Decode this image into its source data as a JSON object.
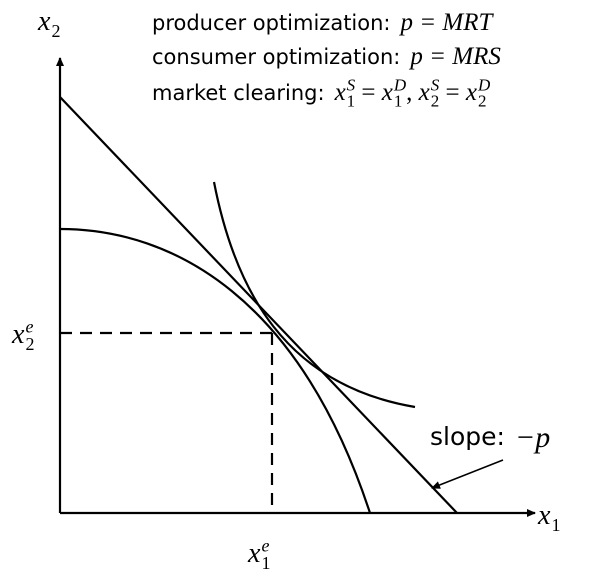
{
  "axes": {
    "y_label": {
      "t": "x",
      "sub": "2"
    },
    "x_label": {
      "t": "x",
      "sub": "1"
    }
  },
  "equilibrium": {
    "x2": {
      "t": "x",
      "sup": "e",
      "sub": "2"
    },
    "x1": {
      "t": "x",
      "sup": "e",
      "sub": "1"
    }
  },
  "conditions": [
    {
      "label": "producer optimization:",
      "math": "p = MRT"
    },
    {
      "label": "consumer optimization:",
      "math": "p = MRS"
    },
    {
      "label": "market clearing:",
      "math": [
        {
          "t": "x",
          "sup": "S",
          "sub": "1"
        },
        " = ",
        {
          "t": "x",
          "sup": "D",
          "sub": "1"
        },
        ", ",
        {
          "t": "x",
          "sup": "S",
          "sub": "2"
        },
        " = ",
        {
          "t": "x",
          "sup": "D",
          "sub": "2"
        }
      ]
    }
  ],
  "slope": {
    "label": "slope:",
    "math": "−p"
  }
}
